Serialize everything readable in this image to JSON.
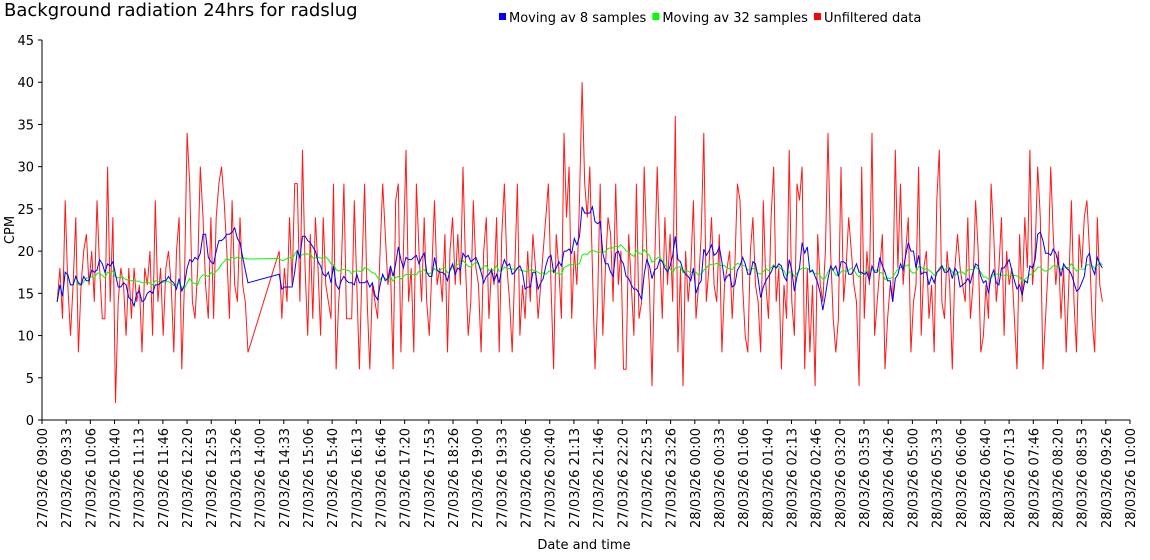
{
  "chart_data": {
    "type": "line",
    "title": "Background radiation 24hrs for radslug",
    "xlabel": "Date and time",
    "ylabel": "CPM",
    "ylim": [
      0,
      45
    ],
    "yticks": [
      0,
      5,
      10,
      15,
      20,
      25,
      30,
      35,
      40,
      45
    ],
    "x_range_minutes_from_start": [
      0,
      1500
    ],
    "xticks": [
      "27/03/26 09:00",
      "27/03/26 09:33",
      "27/03/26 10:06",
      "27/03/26 10:40",
      "27/03/26 11:13",
      "27/03/26 11:46",
      "27/03/26 12:20",
      "27/03/26 12:53",
      "27/03/26 13:26",
      "27/03/26 14:00",
      "27/03/26 14:33",
      "27/03/26 15:06",
      "27/03/26 15:40",
      "27/03/26 16:13",
      "27/03/26 16:46",
      "27/03/26 17:20",
      "27/03/26 17:53",
      "27/03/26 18:26",
      "27/03/26 19:00",
      "27/03/26 19:33",
      "27/03/26 20:06",
      "27/03/26 20:40",
      "27/03/26 21:13",
      "27/03/26 21:46",
      "27/03/26 22:20",
      "27/03/26 22:53",
      "27/03/26 23:26",
      "28/03/26 00:00",
      "28/03/26 00:33",
      "28/03/26 01:06",
      "28/03/26 01:40",
      "28/03/26 02:13",
      "28/03/26 02:46",
      "28/03/26 03:20",
      "28/03/26 03:53",
      "28/03/26 04:26",
      "28/03/26 05:00",
      "28/03/26 05:33",
      "28/03/26 06:06",
      "28/03/26 06:40",
      "28/03/26 07:13",
      "28/03/26 07:46",
      "28/03/26 08:20",
      "28/03/26 08:53",
      "28/03/26 09:26",
      "28/03/26 10:00"
    ],
    "legend_position": "top-center",
    "grid": false,
    "series": [
      {
        "name": "Moving av 8 samples",
        "color": "#0000ff",
        "window": 8
      },
      {
        "name": "Moving av 32 samples",
        "color": "#00ff00",
        "window": 32
      },
      {
        "name": "Unfiltered data",
        "color": "#ff0000",
        "window": 1
      }
    ],
    "raw_segments": [
      {
        "start_min": 21,
        "end_min": 284,
        "values": [
          14,
          18,
          12,
          26,
          16,
          10,
          16,
          24,
          8,
          16,
          20,
          22,
          16,
          20,
          14,
          26,
          18,
          12,
          12,
          30,
          14,
          24,
          2,
          14,
          18,
          16,
          10,
          18,
          12,
          18,
          14,
          16,
          8,
          18,
          16,
          20,
          10,
          26,
          14,
          18,
          10,
          18,
          20,
          16,
          8,
          20,
          24,
          6,
          16,
          34,
          28,
          14,
          12,
          18,
          30,
          24,
          16,
          12,
          24,
          12,
          24,
          28,
          30,
          26,
          20,
          12,
          26,
          16,
          14,
          24,
          16,
          14,
          8
        ]
      },
      {
        "start_min": 327,
        "end_min": 1462,
        "values": [
          20,
          12,
          18,
          14,
          24,
          16,
          28,
          28,
          14,
          32,
          18,
          10,
          22,
          12,
          24,
          18,
          10,
          24,
          16,
          14,
          12,
          28,
          6,
          14,
          18,
          28,
          12,
          12,
          12,
          26,
          16,
          6,
          18,
          28,
          14,
          6,
          16,
          14,
          12,
          20,
          28,
          22,
          16,
          18,
          6,
          26,
          28,
          8,
          20,
          32,
          14,
          18,
          8,
          28,
          20,
          14,
          24,
          14,
          10,
          18,
          26,
          16,
          18,
          14,
          22,
          8,
          20,
          24,
          16,
          22,
          16,
          30,
          18,
          10,
          14,
          26,
          18,
          16,
          8,
          20,
          24,
          12,
          18,
          16,
          24,
          8,
          22,
          28,
          18,
          14,
          8,
          18,
          28,
          10,
          16,
          12,
          20,
          14,
          22,
          18,
          12,
          16,
          20,
          24,
          28,
          16,
          6,
          22,
          18,
          12,
          34,
          24,
          30,
          12,
          20,
          16,
          26,
          40,
          28,
          24,
          30,
          18,
          6,
          14,
          28,
          10,
          18,
          24,
          22,
          14,
          28,
          16,
          20,
          6,
          6,
          22,
          16,
          10,
          28,
          12,
          14,
          30,
          20,
          16,
          4,
          18,
          30,
          20,
          12,
          24,
          16,
          22,
          14,
          36,
          8,
          18,
          4,
          20,
          14,
          18,
          26,
          12,
          16,
          22,
          34,
          14,
          18,
          24,
          16,
          14,
          22,
          8,
          16,
          18,
          20,
          12,
          18,
          28,
          26,
          16,
          10,
          8,
          20,
          24,
          16,
          14,
          8,
          26,
          16,
          12,
          24,
          30,
          14,
          18,
          6,
          16,
          12,
          32,
          14,
          10,
          28,
          26,
          30,
          6,
          18,
          8,
          16,
          4,
          22,
          16,
          14,
          20,
          34,
          20,
          12,
          8,
          12,
          30,
          14,
          18,
          24,
          20,
          16,
          14,
          4,
          30,
          12,
          20,
          16,
          34,
          10,
          14,
          18,
          22,
          6,
          12,
          16,
          14,
          32,
          18,
          28,
          16,
          20,
          24,
          8,
          14,
          16,
          30,
          10,
          18,
          20,
          12,
          16,
          8,
          26,
          32,
          14,
          12,
          20,
          16,
          6,
          18,
          22,
          18,
          16,
          14,
          24,
          12,
          16,
          26,
          20,
          8,
          10,
          16,
          12,
          28,
          22,
          14,
          18,
          24,
          10,
          20,
          16,
          18,
          12,
          6,
          22,
          14,
          24,
          18,
          32,
          16,
          20,
          30,
          24,
          6,
          12,
          18,
          30,
          22,
          16,
          20,
          12,
          18,
          8,
          16,
          26,
          14,
          8,
          22,
          18,
          24,
          26,
          20,
          12,
          8,
          24,
          16,
          14
        ]
      }
    ]
  }
}
